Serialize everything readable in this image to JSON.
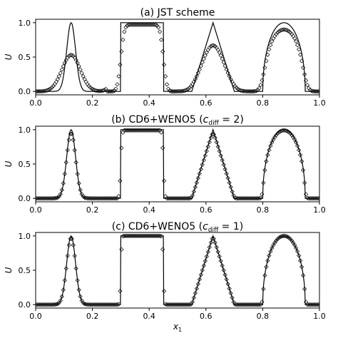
{
  "chart_data": [
    {
      "type": "line",
      "title_parts": [
        "(a) JST scheme"
      ],
      "xlabel": "",
      "ylabel": "U",
      "xlim": [
        0.0,
        1.0
      ],
      "ylim": [
        -0.05,
        1.05
      ],
      "xticks": [
        "0.0",
        "0.2",
        "0.4",
        "0.6",
        "0.8",
        "1.0"
      ],
      "yticks": [
        "0.0",
        "0.5",
        "1.0"
      ],
      "peaks": {
        "gauss1": 0.53,
        "square": 0.97,
        "tri": 0.67,
        "ellipse": 0.9
      },
      "series": [
        {
          "name": "",
          "style": "solid-line",
          "function": "exact"
        },
        {
          "name": "",
          "style": "diamond-markers",
          "function": "numerical",
          "n_points": 200
        }
      ]
    },
    {
      "type": "line",
      "title_parts": [
        "(b) CD6+WENO5 (",
        "c",
        "diff",
        " = 2)"
      ],
      "xlabel": "",
      "ylabel": "U",
      "xlim": [
        0.0,
        1.0
      ],
      "ylim": [
        -0.05,
        1.05
      ],
      "xticks": [
        "0.0",
        "0.2",
        "0.4",
        "0.6",
        "0.8",
        "1.0"
      ],
      "yticks": [
        "0.0",
        "0.5",
        "1.0"
      ],
      "peaks": {
        "gauss1": 0.95,
        "square": 0.99,
        "tri": 0.94,
        "ellipse": 0.99
      },
      "series": [
        {
          "name": "",
          "style": "solid-line",
          "function": "exact"
        },
        {
          "name": "",
          "style": "diamond-markers",
          "function": "numerical",
          "n_points": 200
        }
      ]
    },
    {
      "type": "line",
      "title_parts": [
        "(c) CD6+WENO5 (",
        "c",
        "diff",
        " = 1)"
      ],
      "xlabel": "x1",
      "xlabel_parts": [
        "x",
        "1"
      ],
      "ylabel": "U",
      "xlim": [
        0.0,
        1.0
      ],
      "ylim": [
        -0.05,
        1.05
      ],
      "xticks": [
        "0.0",
        "0.2",
        "0.4",
        "0.6",
        "0.8",
        "1.0"
      ],
      "yticks": [
        "0.0",
        "0.5",
        "1.0"
      ],
      "peaks": {
        "gauss1": 0.97,
        "square": 1.0,
        "tri": 0.97,
        "ellipse": 1.0
      },
      "series": [
        {
          "name": "",
          "style": "solid-line",
          "function": "exact"
        },
        {
          "name": "",
          "style": "diamond-markers",
          "function": "numerical",
          "n_points": 200
        }
      ]
    }
  ]
}
